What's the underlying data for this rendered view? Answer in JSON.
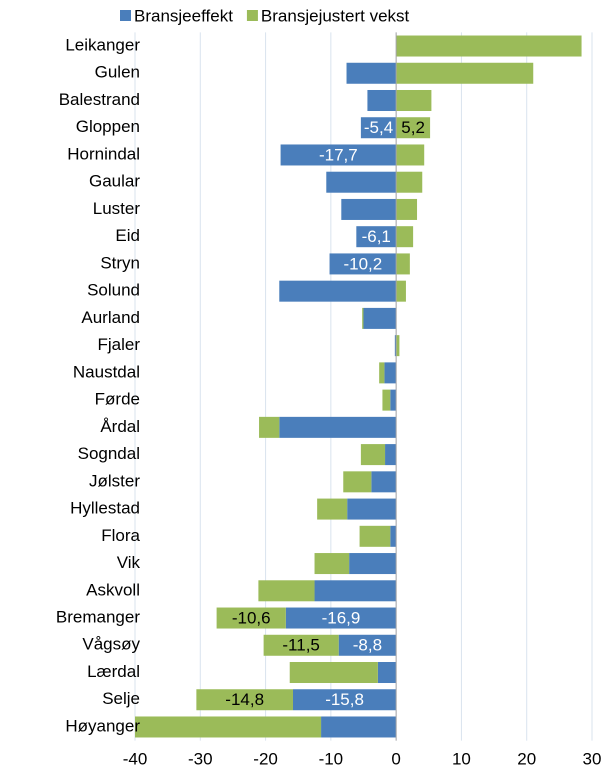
{
  "chart_data": {
    "type": "stacked_barh",
    "categories": [
      "Leikanger",
      "Gulen",
      "Balestrand",
      "Gloppen",
      "Hornindal",
      "Gaular",
      "Luster",
      "Eid",
      "Stryn",
      "Solund",
      "Aurland",
      "Fjaler",
      "Naustdal",
      "Førde",
      "Årdal",
      "Sogndal",
      "Jølster",
      "Hyllestad",
      "Flora",
      "Vik",
      "Askvoll",
      "Bremanger",
      "Vågsøy",
      "Lærdal",
      "Selje",
      "Høyanger"
    ],
    "series": [
      {
        "name": "Bransjeeffekt",
        "color": "#4a7ebb",
        "values": [
          0,
          -7.6,
          -4.4,
          -5.4,
          -17.7,
          -10.7,
          -8.4,
          -6.1,
          -10.2,
          -17.9,
          -5.0,
          -0.2,
          -1.8,
          -0.9,
          -17.9,
          -1.7,
          -3.8,
          -7.5,
          -0.9,
          -7.2,
          -12.5,
          -16.9,
          -8.8,
          -2.8,
          -15.8,
          -11.5
        ],
        "value_labels": [
          null,
          null,
          null,
          "-5,4",
          "-17,7",
          null,
          null,
          "-6,1",
          "-10,2",
          null,
          null,
          null,
          null,
          null,
          null,
          null,
          null,
          null,
          null,
          null,
          null,
          "-16,9",
          "-8,8",
          null,
          "-15,8",
          null
        ]
      },
      {
        "name": "Bransjejustert vekst",
        "color": "#9bbb59",
        "values": [
          28.4,
          21.0,
          5.4,
          5.2,
          4.3,
          4.0,
          3.2,
          2.6,
          2.1,
          1.5,
          -0.2,
          0.5,
          -0.8,
          -1.2,
          -3.1,
          -3.7,
          -4.3,
          -4.6,
          -4.7,
          -5.3,
          -8.6,
          -10.6,
          -11.5,
          -13.5,
          -14.8,
          -28.5
        ],
        "value_labels": [
          null,
          null,
          null,
          "5,2",
          null,
          null,
          null,
          null,
          null,
          null,
          null,
          null,
          null,
          null,
          null,
          null,
          null,
          null,
          null,
          null,
          null,
          "-10,6",
          "-11,5",
          null,
          "-14,8",
          null
        ]
      }
    ],
    "xlim": [
      -40,
      30
    ],
    "xticks": [
      -40,
      -30,
      -20,
      -10,
      0,
      10,
      20,
      30
    ],
    "grid": true,
    "legend": "top"
  }
}
